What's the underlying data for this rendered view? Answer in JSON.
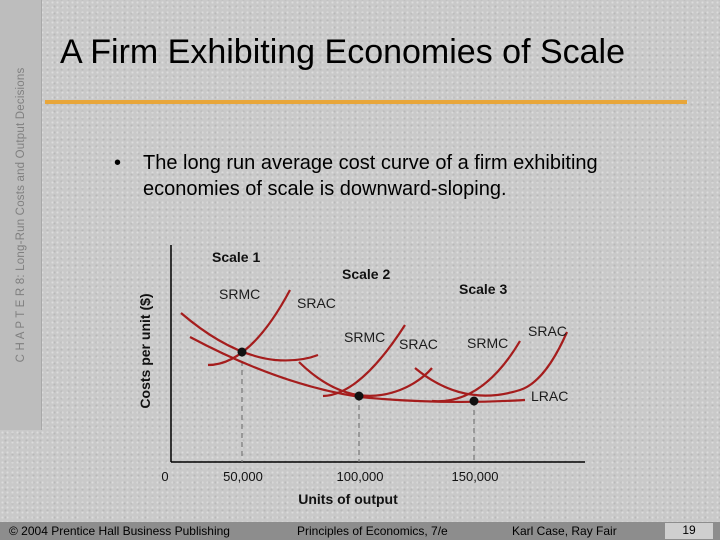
{
  "sidebar": {
    "text": "C H A P T E R  8:  Long-Run Costs and Output Decisions"
  },
  "slide": {
    "title": "A Firm Exhibiting Economies of Scale",
    "bullet_symbol": "•",
    "bullet": "The long run average cost curve of a firm exhibiting economies of scale is downward-sloping."
  },
  "chart_data": {
    "type": "line",
    "xlabel": "Units of output",
    "ylabel": "Costs per unit ($)",
    "x_ticks": [
      "0",
      "50,000",
      "100,000",
      "150,000"
    ],
    "scale_labels": [
      "Scale 1",
      "Scale 2",
      "Scale 3"
    ],
    "curve_labels": [
      "SRMC",
      "SRAC",
      "SRMC",
      "SRAC",
      "SRMC",
      "SRAC",
      "LRAC"
    ],
    "min_points": [
      {
        "scale": "Scale 1",
        "x": 50000
      },
      {
        "scale": "Scale 2",
        "x": 100000
      },
      {
        "scale": "Scale 3",
        "x": 150000
      }
    ],
    "curve_color": "#a51d1d",
    "grid": false
  },
  "footer": {
    "copyright": "© 2004 Prentice Hall Business Publishing",
    "book": "Principles of Economics, 7/e",
    "authors": "Karl Case, Ray Fair",
    "page": "19"
  }
}
